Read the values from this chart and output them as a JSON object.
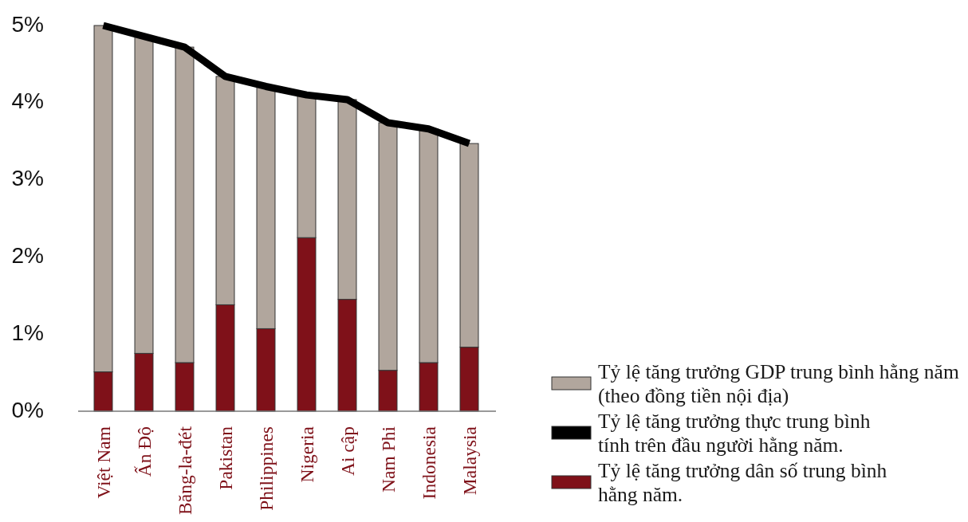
{
  "chart_data": {
    "type": "bar",
    "stacked": true,
    "categories": [
      "Việt Nam",
      "Ấn Độ",
      "Băng-la-đét",
      "Pakistan",
      "Philippines",
      "Nigeria",
      "Ai cập",
      "Nam Phi",
      "Indonesia",
      "Malaysia"
    ],
    "series": [
      {
        "name": "Tỷ lệ tăng trưởng dân số trung bình\nhằng năm.",
        "color": "#7f1119",
        "values": [
          0.51,
          0.75,
          0.63,
          1.38,
          1.07,
          2.25,
          1.45,
          0.53,
          0.63,
          0.83
        ]
      },
      {
        "name": "Tỷ lệ tăng trưởng GDP trung bình hằng năm\n(theo đồng tiền nội địa)",
        "color": "#b1a69d",
        "values": [
          4.49,
          4.11,
          4.09,
          2.96,
          3.14,
          1.85,
          2.59,
          3.21,
          3.03,
          2.64
        ]
      },
      {
        "type": "line",
        "name": "Tỷ lệ tăng trưởng thực trung bình\ntính trên đầu người hằng năm.",
        "color": "#000000",
        "values": [
          5.0,
          4.86,
          4.72,
          4.34,
          4.21,
          4.1,
          4.04,
          3.74,
          3.66,
          3.47
        ]
      }
    ],
    "ylim": [
      0,
      5
    ],
    "yticks": [
      {
        "value": 0,
        "label": "0%"
      },
      {
        "value": 1,
        "label": "1%"
      },
      {
        "value": 2,
        "label": "2%"
      },
      {
        "value": 3,
        "label": "3%"
      },
      {
        "value": 4,
        "label": "4%"
      },
      {
        "value": 5,
        "label": "5%"
      }
    ],
    "legend": "bottom right"
  }
}
